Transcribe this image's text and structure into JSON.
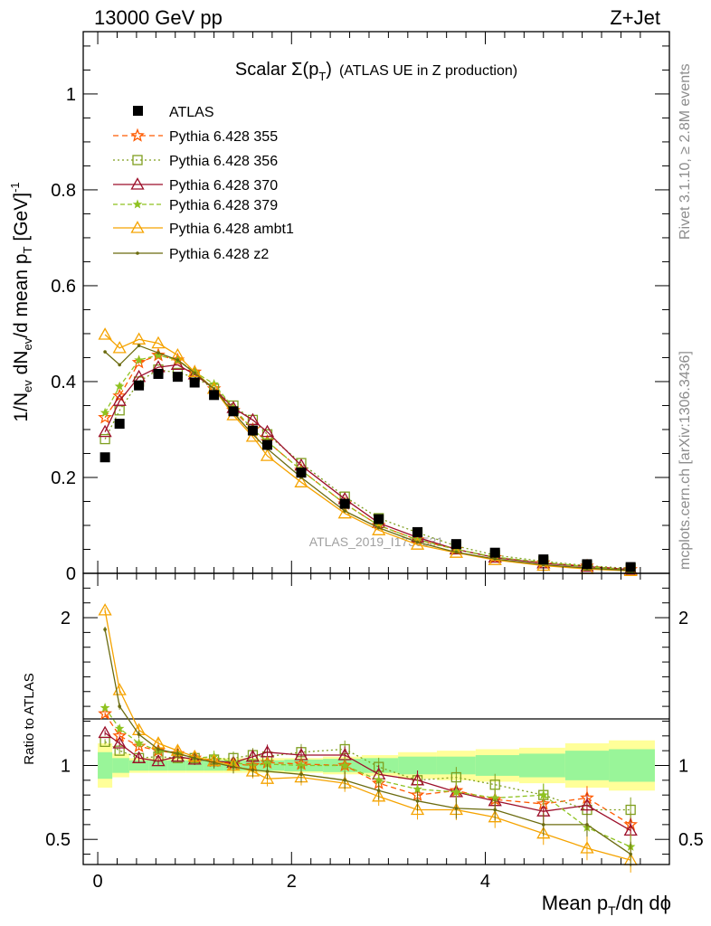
{
  "header": {
    "left": "13000 GeV pp",
    "right": "Z+Jet"
  },
  "side_labels": {
    "rivet": "Rivet 3.1.10, ≥ 2.8M events",
    "mcplots": "mcplots.cern.ch [arXiv:1306.3436]"
  },
  "chart_data": {
    "type": "line",
    "title_main": "Scalar Σ(p",
    "title_sub": "T",
    "title_end": ")",
    "title_extra": "(ATLAS UE in Z production)",
    "watermark": "ATLAS_2019_I1736531",
    "xlabel": {
      "main": "Mean p",
      "sub": "T",
      "end": "/dη dϕ"
    },
    "ylabel": {
      "p1": "1/N",
      "s1": "ev",
      "p2": " dN",
      "s2": "ev",
      "p3": "/d mean p",
      "s3": "T",
      "p4": " [GeV]",
      "sup": "-1"
    },
    "ratio_ylabel": "Ratio to ATLAS",
    "xlim": [
      -0.15,
      5.9
    ],
    "ylim_main": [
      0,
      1.13
    ],
    "ylim_ratio": [
      0.33,
      2.3
    ],
    "x_ticks": [
      0,
      2,
      4
    ],
    "x_tick_labels": [
      "0",
      "2",
      "4"
    ],
    "y_ticks_main": [
      0,
      0.2,
      0.4,
      0.6,
      0.8,
      1
    ],
    "y_tick_labels_main": [
      "0",
      "0.2",
      "0.4",
      "0.6",
      "0.8",
      "1"
    ],
    "y_ticks_ratio": [
      0.5,
      1,
      2
    ],
    "y_tick_labels_ratio": [
      "0.5",
      "1",
      "2"
    ],
    "x": [
      0.075,
      0.225,
      0.425,
      0.625,
      0.825,
      1.0,
      1.2,
      1.4,
      1.6,
      1.75,
      2.1,
      2.55,
      2.9,
      3.3,
      3.7,
      4.1,
      4.6,
      5.05,
      5.5
    ],
    "reference": {
      "name": "ATLAS",
      "values": [
        0.242,
        0.312,
        0.392,
        0.416,
        0.41,
        0.398,
        0.372,
        0.338,
        0.298,
        0.268,
        0.21,
        0.145,
        0.113,
        0.086,
        0.061,
        0.043,
        0.029,
        0.019,
        0.013
      ],
      "band_yellow_half": [
        0.15,
        0.08,
        0.05,
        0.05,
        0.05,
        0.05,
        0.05,
        0.05,
        0.05,
        0.05,
        0.05,
        0.06,
        0.07,
        0.09,
        0.1,
        0.11,
        0.12,
        0.15,
        0.17
      ],
      "band_green_half": [
        0.09,
        0.05,
        0.035,
        0.035,
        0.035,
        0.035,
        0.035,
        0.035,
        0.035,
        0.035,
        0.04,
        0.045,
        0.05,
        0.06,
        0.06,
        0.07,
        0.08,
        0.1,
        0.11
      ]
    },
    "series": [
      {
        "name": "Pythia 6.428 355",
        "color": "#ff5a00",
        "marker": "star",
        "dash": "6,4",
        "values": [
          0.325,
          0.37,
          0.44,
          0.455,
          0.445,
          0.42,
          0.385,
          0.34,
          0.3,
          0.275,
          0.215,
          0.145,
          0.1,
          0.07,
          0.05,
          0.033,
          0.022,
          0.015,
          0.008
        ],
        "ratio": [
          1.35,
          1.2,
          1.13,
          1.1,
          1.08,
          1.05,
          1.03,
          1.01,
          1.0,
          1.02,
          1.01,
          1.0,
          0.88,
          0.8,
          0.83,
          0.77,
          0.74,
          0.78,
          0.6
        ]
      },
      {
        "name": "Pythia 6.428 356",
        "color": "#7f9f1f",
        "marker": "open-square",
        "dash": "2,3",
        "values": [
          0.28,
          0.34,
          0.4,
          0.425,
          0.418,
          0.41,
          0.385,
          0.35,
          0.32,
          0.29,
          0.23,
          0.16,
          0.115,
          0.085,
          0.057,
          0.038,
          0.025,
          0.016,
          0.01
        ],
        "ratio": [
          1.16,
          1.1,
          1.05,
          1.06,
          1.05,
          1.05,
          1.04,
          1.05,
          1.07,
          1.06,
          1.09,
          1.11,
          0.99,
          0.9,
          0.92,
          0.87,
          0.8,
          0.7,
          0.7
        ]
      },
      {
        "name": "Pythia 6.428 370",
        "color": "#9c0f2a",
        "marker": "open-triangle",
        "dash": "",
        "values": [
          0.295,
          0.36,
          0.41,
          0.43,
          0.435,
          0.415,
          0.385,
          0.345,
          0.32,
          0.295,
          0.225,
          0.155,
          0.105,
          0.075,
          0.05,
          0.033,
          0.021,
          0.014,
          0.008
        ],
        "ratio": [
          1.22,
          1.15,
          1.05,
          1.03,
          1.06,
          1.04,
          1.03,
          1.02,
          1.06,
          1.09,
          1.07,
          1.07,
          0.94,
          0.9,
          0.82,
          0.76,
          0.69,
          0.73,
          0.56
        ]
      },
      {
        "name": "Pythia 6.428 379",
        "color": "#8fc221",
        "marker": "star-small",
        "dash": "5,3",
        "values": [
          0.335,
          0.39,
          0.445,
          0.455,
          0.445,
          0.42,
          0.395,
          0.345,
          0.3,
          0.275,
          0.215,
          0.145,
          0.1,
          0.07,
          0.05,
          0.034,
          0.023,
          0.014,
          0.007
        ],
        "ratio": [
          1.39,
          1.25,
          1.15,
          1.1,
          1.08,
          1.05,
          1.06,
          1.02,
          1.0,
          1.01,
          1.0,
          1.0,
          0.9,
          0.84,
          0.82,
          0.78,
          0.8,
          0.58,
          0.45
        ]
      },
      {
        "name": "Pythia 6.428 ambt1",
        "color": "#f5a300",
        "marker": "open-triangle",
        "dash": "",
        "values": [
          0.498,
          0.47,
          0.488,
          0.48,
          0.455,
          0.42,
          0.385,
          0.33,
          0.285,
          0.245,
          0.19,
          0.125,
          0.09,
          0.06,
          0.043,
          0.028,
          0.016,
          0.009,
          0.005
        ],
        "ratio": [
          2.05,
          1.51,
          1.24,
          1.15,
          1.1,
          1.06,
          1.03,
          1.0,
          0.96,
          0.91,
          0.92,
          0.88,
          0.79,
          0.7,
          0.7,
          0.65,
          0.54,
          0.44,
          0.36
        ]
      },
      {
        "name": "Pythia 6.428 z2",
        "color": "#6b6b0f",
        "marker": "dot",
        "dash": "",
        "values": [
          0.462,
          0.435,
          0.475,
          0.46,
          0.445,
          0.418,
          0.385,
          0.335,
          0.29,
          0.26,
          0.2,
          0.13,
          0.095,
          0.065,
          0.044,
          0.03,
          0.018,
          0.011,
          0.006
        ],
        "ratio": [
          1.92,
          1.4,
          1.21,
          1.11,
          1.08,
          1.05,
          1.02,
          0.99,
          0.97,
          0.96,
          0.94,
          0.9,
          0.83,
          0.76,
          0.71,
          0.7,
          0.6,
          0.6,
          0.4
        ]
      }
    ]
  }
}
